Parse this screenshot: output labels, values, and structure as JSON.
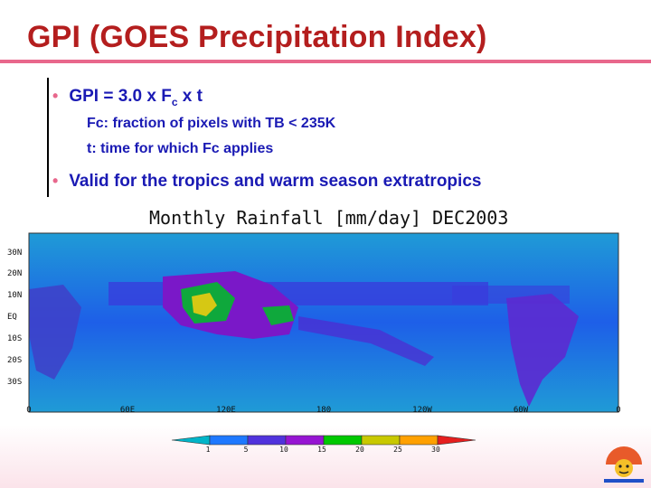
{
  "title": "GPI (GOES Precipitation Index)",
  "bullets": {
    "b1_prefix": "GPI = 3.0 x F",
    "b1_sub": "c",
    "b1_suffix": " x t",
    "sub1": "Fc: fraction of pixels with TB < 235K",
    "sub2": "t: time for which Fc applies",
    "b2": "Valid for the tropics and warm season extratropics"
  },
  "map": {
    "title": "Monthly Rainfall [mm/day] DEC2003",
    "lat_labels": [
      "30N",
      "20N",
      "10N",
      "EQ",
      "10S",
      "20S",
      "30S"
    ],
    "lon_labels": [
      "0",
      "60E",
      "120E",
      "180",
      "120W",
      "60W",
      "0"
    ],
    "colorbar_ticks": [
      "1",
      "5",
      "10",
      "15",
      "20",
      "25",
      "30"
    ],
    "colorbar_colors": [
      "#00b4c8",
      "#1e78ff",
      "#5032dc",
      "#9614d2",
      "#00c800",
      "#c8c800",
      "#ffa000",
      "#e61e1e"
    ]
  },
  "colors": {
    "accent": "#e8678c",
    "title": "#b41e1e",
    "text": "#1a1ab4"
  },
  "icons": {
    "logo": "mascot-logo-icon"
  }
}
